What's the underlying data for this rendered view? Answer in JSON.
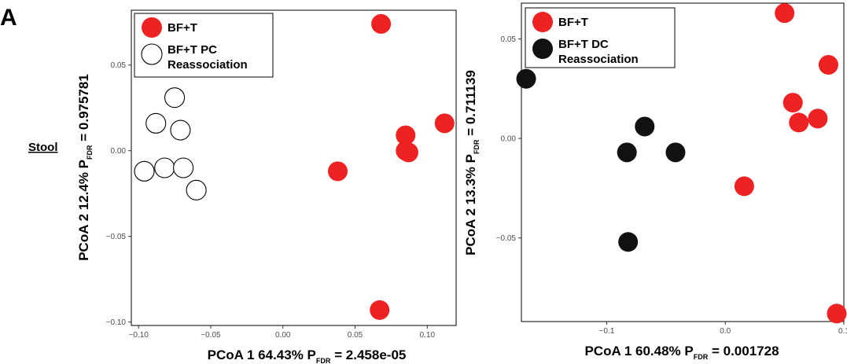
{
  "figure": {
    "panel_label": "A",
    "row_label": "Stool"
  },
  "colors": {
    "red": "#ee2222",
    "black": "#111111",
    "open_fill": "#ffffff",
    "stroke": "#000000"
  },
  "chart_data": [
    {
      "type": "scatter",
      "xlabel": {
        "main": "PCoA 1  64.43% P",
        "sub": "FDR",
        "tail": " =  2.458e-05"
      },
      "ylabel": {
        "main": "PCoA 2  12.4% P",
        "sub": "FDR",
        "tail": " =  0.975781"
      },
      "xlim": [
        -0.105,
        0.12
      ],
      "ylim": [
        -0.102,
        0.082
      ],
      "xticks": [
        {
          "v": -0.1,
          "label": "−0.10"
        },
        {
          "v": -0.05,
          "label": "−0.05"
        },
        {
          "v": 0.0,
          "label": "0.00"
        },
        {
          "v": 0.05,
          "label": "0.05"
        },
        {
          "v": 0.1,
          "label": "0.10"
        }
      ],
      "yticks": [
        {
          "v": 0.05,
          "label": "0.05"
        },
        {
          "v": 0.0,
          "label": "0.00"
        },
        {
          "v": -0.05,
          "label": "−0.05"
        },
        {
          "v": -0.1,
          "label": "−0.10"
        }
      ],
      "grid": false,
      "legend": "top-left",
      "series": [
        {
          "name": "BF+T",
          "marker": "filled-red",
          "x": [
            0.068,
            0.112,
            0.085,
            0.087,
            0.085,
            0.038,
            0.067
          ],
          "y": [
            0.074,
            0.016,
            0.009,
            -0.001,
            0.0,
            -0.012,
            -0.093
          ]
        },
        {
          "name": "BF+T PC\nReassociation",
          "marker": "open",
          "x": [
            -0.075,
            -0.088,
            -0.071,
            -0.096,
            -0.082,
            -0.069,
            -0.06
          ],
          "y": [
            0.031,
            0.016,
            0.012,
            -0.012,
            -0.01,
            -0.01,
            -0.023
          ]
        }
      ]
    },
    {
      "type": "scatter",
      "xlabel": {
        "main": "PCoA 1  60.48% P",
        "sub": "FDR",
        "tail": " = 0.001728"
      },
      "ylabel": {
        "main": "PCoA 2  13.3% P",
        "sub": "FDR",
        "tail": " = 0.711139"
      },
      "xlim": [
        -0.172,
        0.1
      ],
      "ylim": [
        -0.092,
        0.068
      ],
      "xticks": [
        {
          "v": -0.1,
          "label": "−0.1"
        },
        {
          "v": 0.0,
          "label": "0.0"
        },
        {
          "v": 0.1,
          "label": "0.1"
        }
      ],
      "yticks": [
        {
          "v": 0.05,
          "label": "0.05"
        },
        {
          "v": 0.0,
          "label": "0.00"
        },
        {
          "v": -0.05,
          "label": "−0.05"
        }
      ],
      "grid": false,
      "legend": "top-left",
      "series": [
        {
          "name": "BF+T",
          "marker": "filled-red",
          "x": [
            0.05,
            0.087,
            0.057,
            0.078,
            0.062,
            0.016,
            0.094
          ],
          "y": [
            0.063,
            0.037,
            0.018,
            0.01,
            0.008,
            -0.024,
            -0.088
          ]
        },
        {
          "name": "BF+T DC\nReassociation",
          "marker": "filled-black",
          "x": [
            -0.168,
            -0.068,
            -0.083,
            -0.042,
            -0.082
          ],
          "y": [
            0.03,
            0.006,
            -0.007,
            -0.007,
            -0.052
          ]
        }
      ]
    }
  ]
}
